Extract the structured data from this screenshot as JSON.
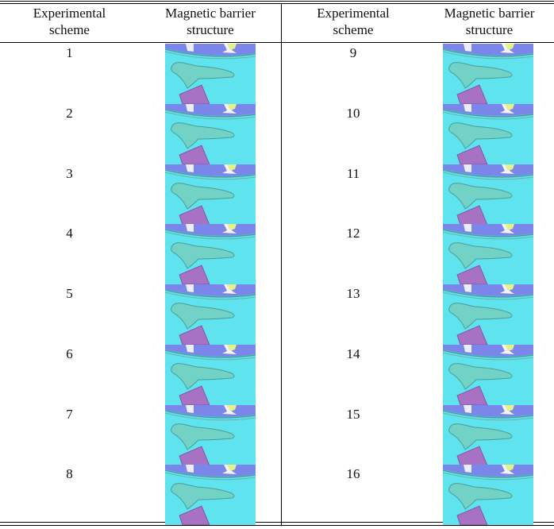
{
  "table": {
    "header": [
      "Experimental scheme",
      "Magnetic barrier structure",
      "Experimental scheme",
      "Magnetic barrier structure"
    ],
    "rows": [
      [
        "1",
        "9"
      ],
      [
        "2",
        "10"
      ],
      [
        "3",
        "11"
      ],
      [
        "4",
        "12"
      ],
      [
        "5",
        "13"
      ],
      [
        "6",
        "14"
      ],
      [
        "7",
        "15"
      ],
      [
        "8",
        "16"
      ]
    ]
  }
}
